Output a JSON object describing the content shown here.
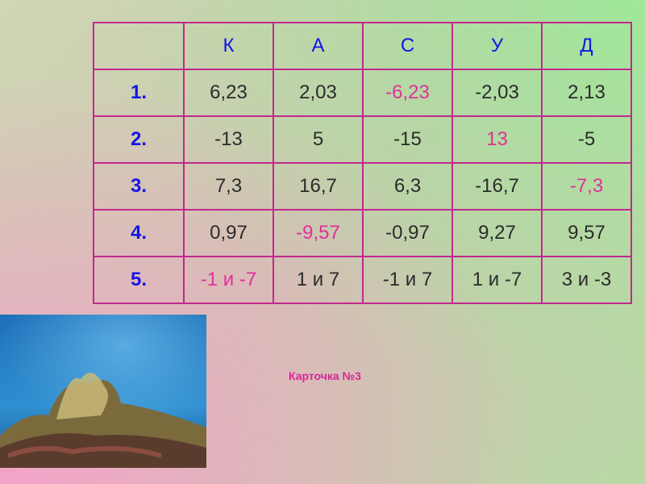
{
  "table": {
    "header": [
      "К",
      "А",
      "С",
      "У",
      "Д"
    ],
    "rows": [
      [
        "1.",
        "6,23",
        "2,03",
        "-6,23",
        "-2,03",
        "2,13"
      ],
      [
        "2.",
        "-13",
        "5",
        "-15",
        "13",
        "-5"
      ],
      [
        "3.",
        "7,3",
        "16,7",
        "6,3",
        "-16,7",
        "-7,3"
      ],
      [
        "4.",
        "0,97",
        "-9,57",
        "-0,97",
        "9,27",
        "9,57"
      ],
      [
        "5.",
        "-1 и -7",
        "1 и 7",
        "-1 и 7",
        "1 и -7",
        "3 и -3"
      ]
    ]
  },
  "caption": "Карточка №3"
}
